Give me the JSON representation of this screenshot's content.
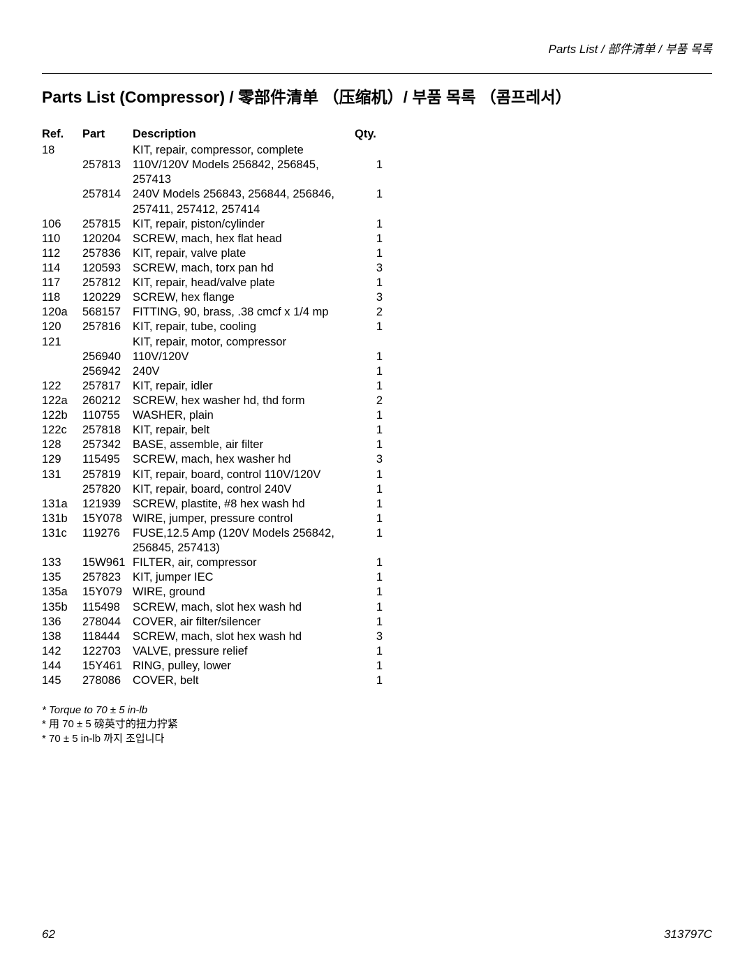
{
  "header_right": "Parts List / 部件清单 / 부품 목록",
  "title": "Parts List (Compressor) / 零部件清单 （压缩机）/ 부품 목록 （콤프레서）",
  "columns": {
    "ref": "Ref.",
    "part": "Part",
    "desc": "Description",
    "qty": "Qty."
  },
  "rows": [
    {
      "ref": "18",
      "part": "",
      "desc": "KIT, repair, compressor, complete",
      "qty": ""
    },
    {
      "ref": "",
      "part": "257813",
      "desc": "110V/120V Models 256842, 256845, 257413",
      "qty": "1"
    },
    {
      "ref": "",
      "part": "257814",
      "desc": "240V Models 256843, 256844, 256846, 257411, 257412, 257414",
      "qty": "1"
    },
    {
      "ref": "106",
      "part": "257815",
      "desc": "KIT, repair, piston/cylinder",
      "qty": "1"
    },
    {
      "ref": "110",
      "part": "120204",
      "desc": "SCREW, mach, hex flat head",
      "qty": "1"
    },
    {
      "ref": "112",
      "part": "257836",
      "desc": "KIT, repair, valve plate",
      "qty": "1"
    },
    {
      "ref": "114",
      "part": "120593",
      "desc": "SCREW, mach, torx pan hd",
      "qty": "3"
    },
    {
      "ref": "117",
      "part": "257812",
      "desc": "KIT, repair, head/valve plate",
      "qty": "1"
    },
    {
      "ref": "118",
      "part": "120229",
      "desc": "SCREW, hex flange",
      "qty": "3"
    },
    {
      "ref": "120a",
      "part": "568157",
      "desc": "FITTING, 90, brass, .38 cmcf x 1/4 mp",
      "qty": "2"
    },
    {
      "ref": "120",
      "part": "257816",
      "desc": "KIT, repair, tube, cooling",
      "qty": "1"
    },
    {
      "ref": "121",
      "part": "",
      "desc": "KIT, repair, motor, compressor",
      "qty": ""
    },
    {
      "ref": "",
      "part": "256940",
      "desc": "110V/120V",
      "qty": "1"
    },
    {
      "ref": "",
      "part": "256942",
      "desc": "240V",
      "qty": "1"
    },
    {
      "ref": "122",
      "part": "257817",
      "desc": "KIT, repair, idler",
      "qty": "1"
    },
    {
      "ref": "122a",
      "part": "260212",
      "desc": "SCREW, hex washer hd, thd form",
      "qty": "2"
    },
    {
      "ref": "122b",
      "part": "110755",
      "desc": "WASHER, plain",
      "qty": "1"
    },
    {
      "ref": "122c",
      "part": "257818",
      "desc": "KIT, repair, belt",
      "qty": "1"
    },
    {
      "ref": "128",
      "part": "257342",
      "desc": "BASE, assemble, air filter",
      "qty": "1"
    },
    {
      "ref": "129",
      "part": "115495",
      "desc": "SCREW, mach, hex washer hd",
      "qty": "3"
    },
    {
      "ref": "131",
      "part": "257819",
      "desc": "KIT, repair, board, control 110V/120V",
      "qty": "1"
    },
    {
      "ref": "",
      "part": "257820",
      "desc": "KIT, repair, board, control 240V",
      "qty": "1"
    },
    {
      "ref": "131a",
      "part": "121939",
      "desc": "SCREW, plastite, #8 hex wash hd",
      "qty": "1"
    },
    {
      "ref": "131b",
      "part": "15Y078",
      "desc": "WIRE, jumper, pressure control",
      "qty": "1"
    },
    {
      "ref": "131c",
      "part": "119276",
      "desc": "FUSE,12.5 Amp (120V Models 256842, 256845, 257413)",
      "qty": "1"
    },
    {
      "ref": "133",
      "part": "15W961",
      "desc": "FILTER, air, compressor",
      "qty": "1"
    },
    {
      "ref": "135",
      "part": "257823",
      "desc": "KIT, jumper IEC",
      "qty": "1"
    },
    {
      "ref": "135a",
      "part": "15Y079",
      "desc": "WIRE, ground",
      "qty": "1"
    },
    {
      "ref": "135b",
      "part": "115498",
      "desc": "SCREW, mach, slot hex wash hd",
      "qty": "1"
    },
    {
      "ref": "136",
      "part": "278044",
      "desc": "COVER, air filter/silencer",
      "qty": "1"
    },
    {
      "ref": "138",
      "part": "118444",
      "desc": "SCREW, mach, slot hex wash hd",
      "qty": "3"
    },
    {
      "ref": "142",
      "part": "122703",
      "desc": "VALVE, pressure relief",
      "qty": "1"
    },
    {
      "ref": "144",
      "part": "15Y461",
      "desc": "RING, pulley, lower",
      "qty": "1"
    },
    {
      "ref": "145",
      "part": "278086",
      "desc": "COVER, belt",
      "qty": "1"
    }
  ],
  "notes": {
    "n1": "* Torque to 70 ± 5 in-lb",
    "n2": "* 用 70 ± 5 磅英寸的扭力拧紧",
    "n3": "* 70 ± 5 in-lb 까지 조입니다"
  },
  "footer": {
    "page": "62",
    "doc": "313797C"
  }
}
